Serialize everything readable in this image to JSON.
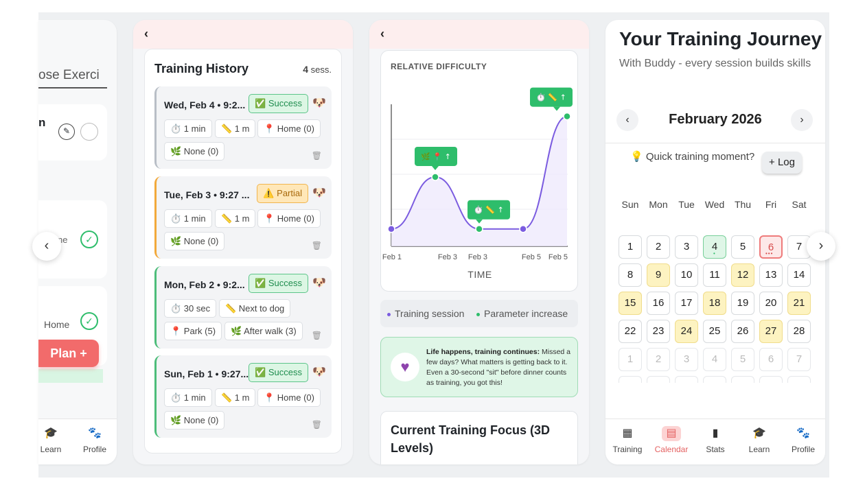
{
  "panel1": {
    "choose_label": "ose Exerci",
    "card_title": "n",
    "partial_text": "ne",
    "home_label": "Home",
    "plan_button": "Plan +",
    "nav": [
      {
        "label": "Learn",
        "icon": "graduation-cap-icon"
      },
      {
        "label": "Profile",
        "icon": "paw-icon"
      }
    ]
  },
  "panel2": {
    "title": "Training History",
    "session_count": "4",
    "session_suffix": "sess.",
    "sessions": [
      {
        "date": "Wed, Feb 4 • 9:2...",
        "status": "✅ Success",
        "chips": [
          "⏱️ 1 min",
          "📏 1 m",
          "📍 Home (0)",
          "🌿 None (0)"
        ]
      },
      {
        "date": "Tue, Feb 3 • 9:27 ...",
        "status": "⚠️ Partial",
        "chips": [
          "⏱️ 1 min",
          "📏 1 m",
          "📍 Home (0)",
          "🌿 None (0)"
        ]
      },
      {
        "date": "Mon, Feb 2 • 9:2...",
        "status": "✅ Success",
        "chips": [
          "⏱️ 30 sec",
          "📏 Next to dog",
          "📍 Park (5)",
          "🌿 After walk (3)"
        ]
      },
      {
        "date": "Sun, Feb 1 • 9:27...",
        "status": "✅ Success",
        "chips": [
          "⏱️ 1 min",
          "📏 1 m",
          "📍 Home (0)",
          "🌿 None (0)"
        ]
      }
    ]
  },
  "panel3": {
    "chart_title": "RELATIVE DIFFICULTY",
    "legend": {
      "session": "Training session",
      "increase": "Parameter increase"
    },
    "life_bold": "Life happens, training continues:",
    "life_text": " Missed a few days? What matters is getting back to it. Even a 30-second \"sit\" before dinner counts as training, you got this!",
    "focus_title": "Current Training Focus (3D Levels)"
  },
  "chart_data": {
    "type": "line",
    "title": "RELATIVE DIFFICULTY",
    "xlabel": "TIME",
    "ylabel": "",
    "x_tick_labels": [
      "Feb 1",
      "Feb 3",
      "Feb 3",
      "Feb 5",
      "Feb 5"
    ],
    "points": [
      {
        "x": "Feb 1",
        "y": 0.1
      },
      {
        "x": "Feb 2",
        "y": 0.4
      },
      {
        "x": "Feb 3",
        "y": 0.1
      },
      {
        "x": "Feb 4",
        "y": 0.1
      },
      {
        "x": "Feb 5",
        "y": 0.75
      }
    ],
    "annotations": [
      {
        "x": "Feb 2",
        "text": "🌿 📍 ↑"
      },
      {
        "x": "Feb 3",
        "text": "⏱️ 📏 ↑"
      },
      {
        "x": "Feb 5",
        "text": "⏱️ 📏 ↑"
      }
    ],
    "colors": {
      "line": "#7b5ce0",
      "session": "#7b5ce0",
      "increase": "#2ebd6b"
    }
  },
  "panel4": {
    "title": "Your Training Journey",
    "subtitle": "With Buddy - every session builds skills",
    "month": "February 2026",
    "quick": "💡 Quick training moment?",
    "log": "+ Log",
    "weekdays": [
      "Sun",
      "Mon",
      "Tue",
      "Wed",
      "Thu",
      "Fri",
      "Sat"
    ],
    "weeks": [
      [
        "1",
        "2",
        "3",
        "4",
        "5",
        "6",
        "7"
      ],
      [
        "8",
        "9",
        "10",
        "11",
        "12",
        "13",
        "14"
      ],
      [
        "15",
        "16",
        "17",
        "18",
        "19",
        "20",
        "21"
      ],
      [
        "22",
        "23",
        "24",
        "25",
        "26",
        "27",
        "28"
      ],
      [
        "1",
        "2",
        "3",
        "4",
        "5",
        "6",
        "7"
      ]
    ],
    "highlighted_days": [
      "9",
      "12",
      "15",
      "18",
      "21",
      "24",
      "27"
    ],
    "today": "6",
    "trained_day": "4",
    "nav": [
      {
        "label": "Training",
        "icon": "grid-icon"
      },
      {
        "label": "Calendar",
        "icon": "calendar-icon"
      },
      {
        "label": "Stats",
        "icon": "bar-chart-icon"
      },
      {
        "label": "Learn",
        "icon": "graduation-cap-icon"
      },
      {
        "label": "Profile",
        "icon": "paw-icon"
      }
    ],
    "active_nav": "Calendar"
  },
  "carousel": {
    "prev": "‹",
    "next": "›"
  }
}
